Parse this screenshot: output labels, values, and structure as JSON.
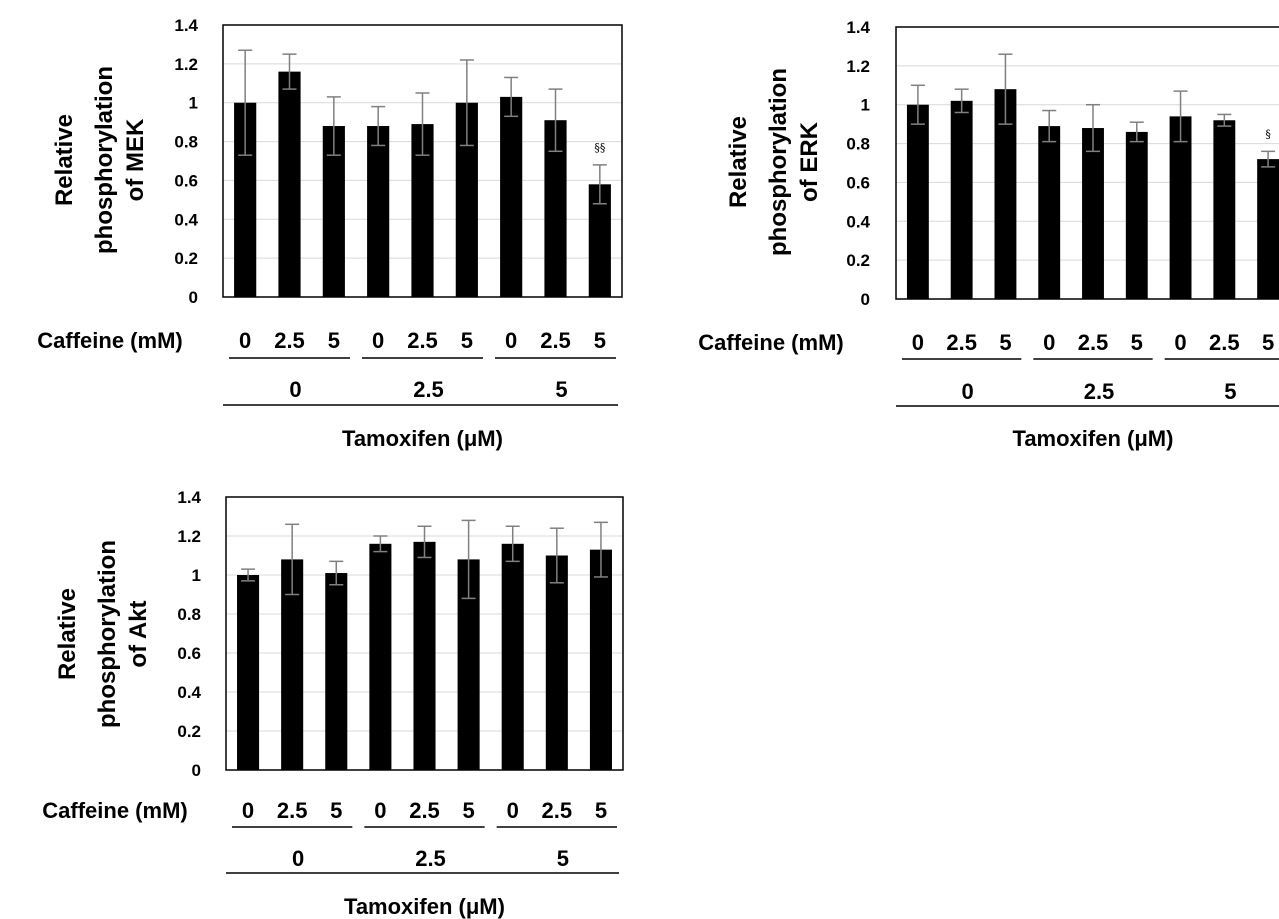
{
  "chart_data": [
    {
      "type": "bar",
      "ylabel_lines": [
        "Relative",
        "phosphorylation",
        "of MEK"
      ],
      "ylim": [
        0,
        1.4
      ],
      "yticks": [
        "0",
        "0.2",
        "0.4",
        "0.6",
        "0.8",
        "1",
        "1.2",
        "1.4"
      ],
      "row_label": "Caffeine (mM)",
      "categories": [
        "0",
        "2.5",
        "5",
        "0",
        "2.5",
        "5",
        "0",
        "2.5",
        "5"
      ],
      "groups": [
        "0",
        "2.5",
        "5"
      ],
      "xlabel": "Tamoxifen (μM)",
      "values": [
        1.0,
        1.16,
        0.88,
        0.88,
        0.89,
        1.0,
        1.03,
        0.91,
        0.58
      ],
      "errors": [
        0.27,
        0.09,
        0.15,
        0.1,
        0.16,
        0.22,
        0.1,
        0.16,
        0.1
      ],
      "significance": [
        "",
        "",
        "",
        "",
        "",
        "",
        "",
        "",
        "§§"
      ],
      "bar_color": "#000000",
      "error_color": "#808080",
      "gridlines": true
    },
    {
      "type": "bar",
      "ylabel_lines": [
        "Relative",
        "phosphorylation",
        "of ERK"
      ],
      "ylim": [
        0,
        1.4
      ],
      "yticks": [
        "0",
        "0.2",
        "0.4",
        "0.6",
        "0.8",
        "1",
        "1.2",
        "1.4"
      ],
      "row_label": "Caffeine (mM)",
      "categories": [
        "0",
        "2.5",
        "5",
        "0",
        "2.5",
        "5",
        "0",
        "2.5",
        "5"
      ],
      "groups": [
        "0",
        "2.5",
        "5"
      ],
      "xlabel": "Tamoxifen (μM)",
      "values": [
        1.0,
        1.02,
        1.08,
        0.89,
        0.88,
        0.86,
        0.94,
        0.92,
        0.72
      ],
      "errors": [
        0.1,
        0.06,
        0.18,
        0.08,
        0.12,
        0.05,
        0.13,
        0.03,
        0.04
      ],
      "significance": [
        "",
        "",
        "",
        "",
        "",
        "",
        "",
        "",
        "§"
      ],
      "bar_color": "#000000",
      "error_color": "#808080",
      "gridlines": true
    },
    {
      "type": "bar",
      "ylabel_lines": [
        "Relative",
        "phosphorylation",
        "of Akt"
      ],
      "ylim": [
        0,
        1.4
      ],
      "yticks": [
        "0",
        "0.2",
        "0.4",
        "0.6",
        "0.8",
        "1",
        "1.2",
        "1.4"
      ],
      "row_label": "Caffeine (mM)",
      "categories": [
        "0",
        "2.5",
        "5",
        "0",
        "2.5",
        "5",
        "0",
        "2.5",
        "5"
      ],
      "groups": [
        "0",
        "2.5",
        "5"
      ],
      "xlabel": "Tamoxifen (μM)",
      "values": [
        1.0,
        1.08,
        1.01,
        1.16,
        1.17,
        1.08,
        1.16,
        1.1,
        1.13
      ],
      "errors": [
        0.03,
        0.18,
        0.06,
        0.04,
        0.08,
        0.2,
        0.09,
        0.14,
        0.14
      ],
      "significance": [
        "",
        "",
        "",
        "",
        "",
        "",
        "",
        "",
        ""
      ],
      "bar_color": "#000000",
      "error_color": "#808080",
      "gridlines": true
    }
  ]
}
